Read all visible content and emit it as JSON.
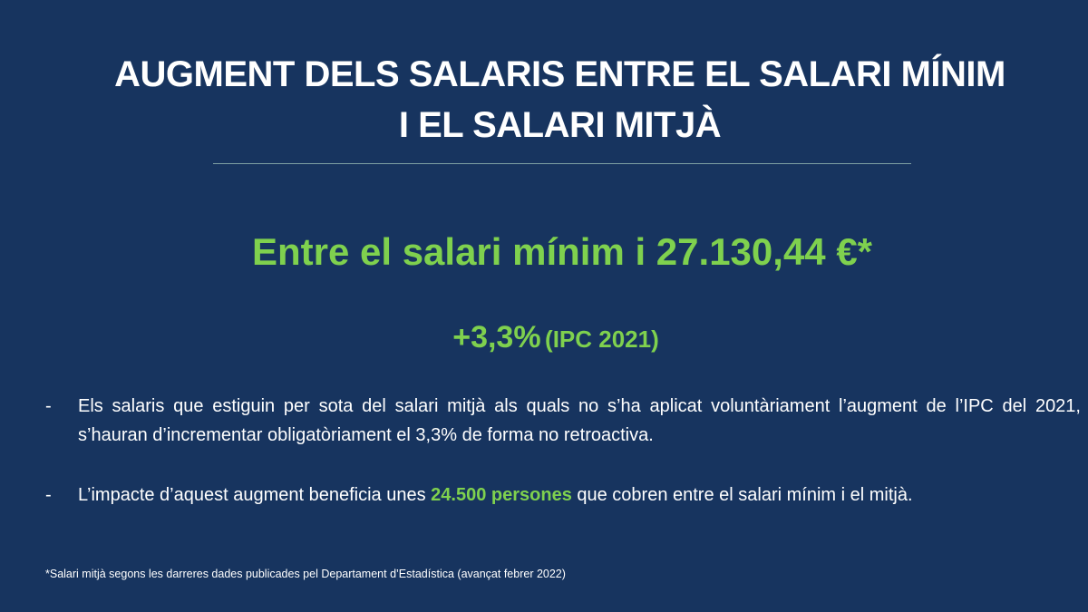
{
  "slide": {
    "title_line1": "AUGMENT DELS SALARIS ENTRE EL SALARI MÍNIM",
    "title_line2": "I EL SALARI MITJÀ",
    "headline": "Entre el salari mínim i 27.130,44 €*",
    "increase_value": "+3,3%",
    "increase_note": "(IPC 2021)",
    "bullets": [
      {
        "dash": "-",
        "text": "Els salaris que estiguin per sota del salari mitjà als quals no s’ha aplicat voluntàriament l’augment de l’IPC del 2021, s’hauran d’incrementar obligatòriament el 3,3% de forma no retroactiva."
      },
      {
        "dash": "-",
        "text_before": "L’impacte d’aquest augment beneficia unes ",
        "highlight": "24.500 persones",
        "text_after": " que cobren entre el salari mínim i el mitjà."
      }
    ],
    "footnote": "*Salari mitjà segons les darreres dades publicades pel Departament d’Estadística (avançat febrer 2022)"
  },
  "colors": {
    "background": "#17345f",
    "accent_green": "#7fd14e",
    "text": "#ffffff",
    "divider": "#7fa0a4"
  }
}
